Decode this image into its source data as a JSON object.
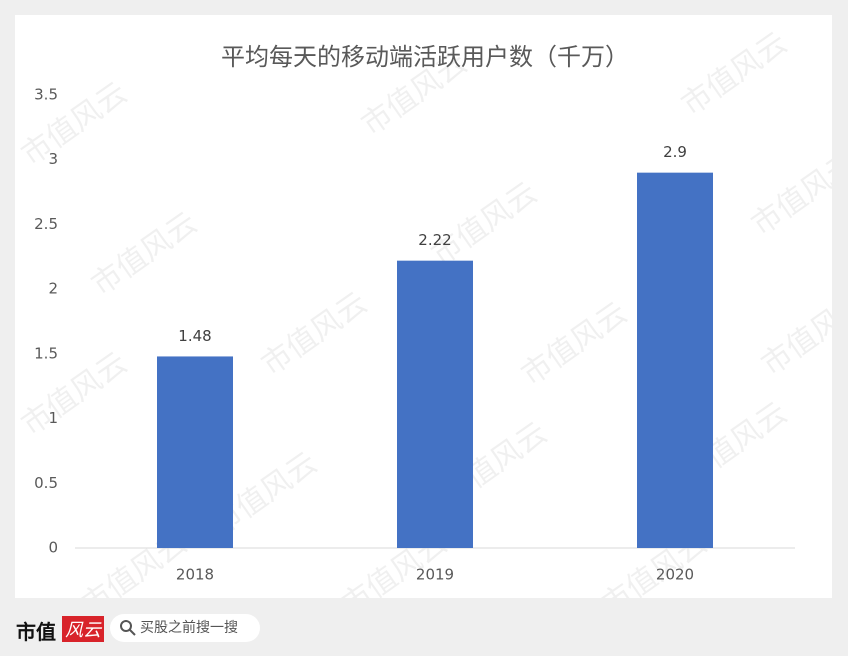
{
  "chart_data": {
    "type": "bar",
    "title": "平均每天的移动端活跃用户数（千万）",
    "categories": [
      "2018",
      "2019",
      "2020"
    ],
    "values": [
      1.48,
      2.22,
      2.9
    ],
    "color": "#4472c4",
    "ylim": [
      0,
      3.5
    ],
    "yticks": [
      0,
      0.5,
      1,
      1.5,
      2,
      2.5,
      3,
      3.5
    ],
    "grid": false,
    "data_labels": true
  },
  "watermark": "市值风云",
  "footer": {
    "brand": "市值",
    "logo": "风云",
    "search_placeholder": "买股之前搜一搜"
  }
}
